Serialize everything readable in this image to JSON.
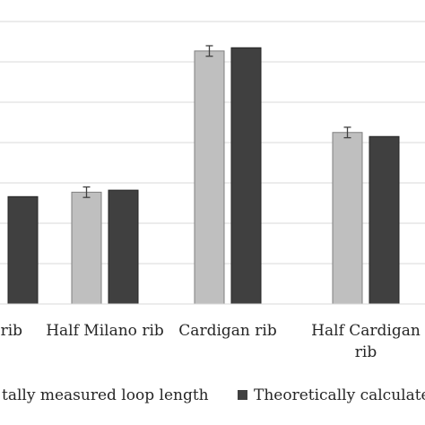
{
  "chart_data": {
    "type": "bar",
    "categories": [
      "Milano rib",
      "Half Milano rib",
      "Cardigan rib",
      "Half Cardigan rib"
    ],
    "category_tick_labels": [
      [
        "o rib"
      ],
      [
        "Half Milano rib"
      ],
      [
        "Cardigan rib"
      ],
      [
        "Half Cardigan",
        "rib"
      ]
    ],
    "series": [
      {
        "name": "Experimentally measured loop length",
        "legend_text": "tally measured loop length",
        "color": "#bfbfbf",
        "values": [
          null,
          2.77,
          6.27,
          4.25
        ],
        "errors": [
          null,
          0.13,
          0.13,
          0.13
        ]
      },
      {
        "name": "Theoretically calculated loop length",
        "legend_text": "Theoretically calculate",
        "color": "#404040",
        "values": [
          2.66,
          2.82,
          6.35,
          4.15
        ],
        "errors": [
          null,
          null,
          null,
          null
        ]
      }
    ],
    "ylim": [
      0,
      7.5
    ],
    "gridlines": [
      1,
      2,
      3,
      4,
      5,
      6,
      7
    ],
    "grid": true,
    "legend_position": "bottom",
    "title": "",
    "xlabel": "",
    "ylabel": ""
  }
}
